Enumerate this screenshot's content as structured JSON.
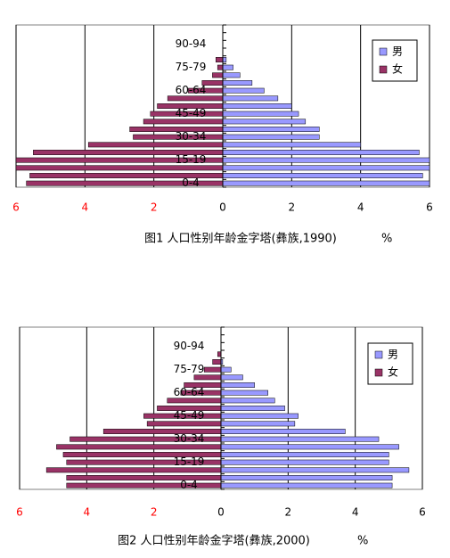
{
  "chart_data": [
    {
      "type": "pyramid",
      "title": "图1 人口性别年龄金字塔(彝族,1990)",
      "xlabel": "%",
      "categories": [
        "0-4",
        null,
        null,
        "15-19",
        null,
        null,
        "30-34",
        null,
        null,
        "45-49",
        null,
        null,
        "60-64",
        null,
        null,
        "75-79",
        null,
        null,
        "90-94",
        null,
        null
      ],
      "series": [
        {
          "name": "男",
          "color": "#9999ff",
          "side": "right",
          "values": [
            6.0,
            5.8,
            6.0,
            6.0,
            5.7,
            4.0,
            2.8,
            2.8,
            2.4,
            2.2,
            2.0,
            1.6,
            1.2,
            0.85,
            0.5,
            0.3,
            0.1,
            0,
            0,
            0,
            0
          ]
        },
        {
          "name": "女",
          "color": "#993366",
          "side": "left",
          "values": [
            5.7,
            5.6,
            6.0,
            6.0,
            5.5,
            3.9,
            2.6,
            2.7,
            2.3,
            2.1,
            1.9,
            1.6,
            1.0,
            0.6,
            0.3,
            0.15,
            0.2,
            0,
            0,
            0,
            0
          ]
        }
      ],
      "xlim": [
        -6,
        6
      ],
      "xticks": [
        {
          "value": -6,
          "label": "6"
        },
        {
          "value": -4,
          "label": "4"
        },
        {
          "value": -2,
          "label": "2"
        },
        0,
        2,
        4,
        6
      ],
      "negative_tick_color": "#ff0000",
      "grid": true,
      "legend": "upper right"
    },
    {
      "type": "pyramid",
      "title": "图2 人口性别年龄金字塔(彝族,2000)",
      "xlabel": "%",
      "categories": [
        "0-4",
        null,
        null,
        "15-19",
        null,
        null,
        "30-34",
        null,
        null,
        "45-49",
        null,
        null,
        "60-64",
        null,
        null,
        "75-79",
        null,
        null,
        "90-94",
        null,
        null
      ],
      "series": [
        {
          "name": "男",
          "color": "#9999ff",
          "side": "right",
          "values": [
            5.1,
            5.1,
            5.6,
            5.0,
            5.0,
            5.3,
            4.7,
            3.7,
            2.2,
            2.3,
            1.9,
            1.6,
            1.4,
            1.0,
            0.65,
            0.3,
            0.05,
            0,
            0,
            0,
            0
          ]
        },
        {
          "name": "女",
          "color": "#993366",
          "side": "left",
          "values": [
            4.6,
            4.6,
            5.2,
            4.6,
            4.7,
            4.9,
            4.5,
            3.5,
            2.2,
            2.3,
            1.9,
            1.6,
            1.2,
            1.1,
            0.8,
            0.5,
            0.25,
            0.1,
            0,
            0,
            0
          ]
        }
      ],
      "xlim": [
        -6,
        6
      ],
      "xticks": [
        {
          "value": -6,
          "label": "6"
        },
        {
          "value": -4,
          "label": "4"
        },
        {
          "value": -2,
          "label": "2"
        },
        0,
        2,
        4,
        6
      ],
      "negative_tick_color": "#ff0000",
      "grid": true,
      "legend": "upper right"
    }
  ]
}
